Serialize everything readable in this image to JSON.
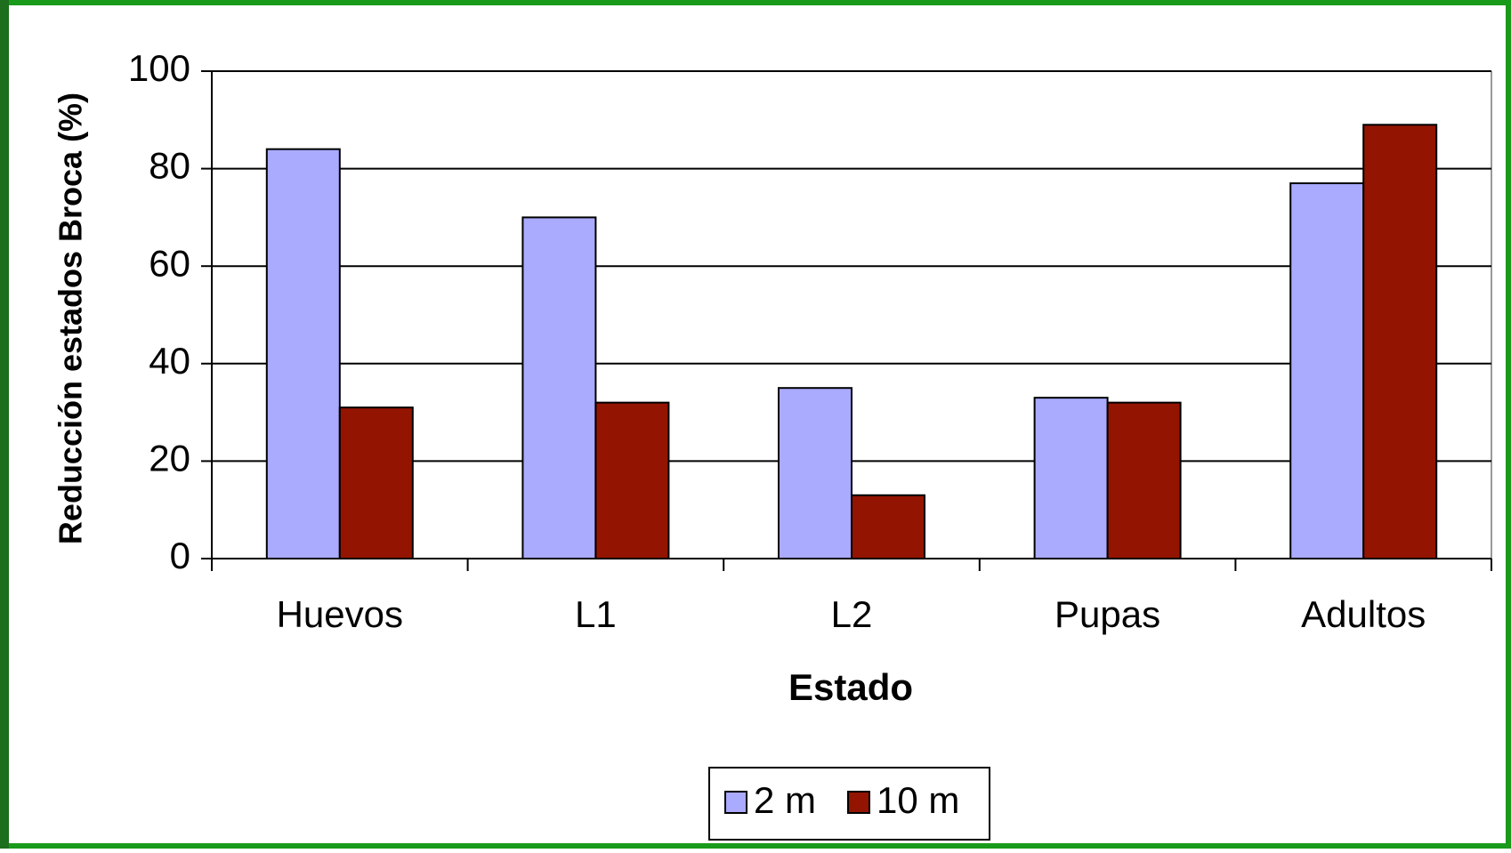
{
  "chart_data": {
    "type": "bar",
    "x_label": "Estado",
    "y_label": "Reducción estados Broca (%)",
    "categories": [
      "Huevos",
      "L1",
      "L2",
      "Pupas",
      "Adultos"
    ],
    "series": [
      {
        "name": "2 m",
        "color": "#aaaaff",
        "values": [
          84,
          70,
          35,
          33,
          77
        ]
      },
      {
        "name": "10 m",
        "color": "#931400",
        "values": [
          31,
          32,
          13,
          32,
          89
        ]
      }
    ],
    "ylim": [
      0,
      100
    ],
    "yticks": [
      0,
      20,
      40,
      60,
      80,
      100
    ],
    "grid": true,
    "legend": "bottom"
  }
}
